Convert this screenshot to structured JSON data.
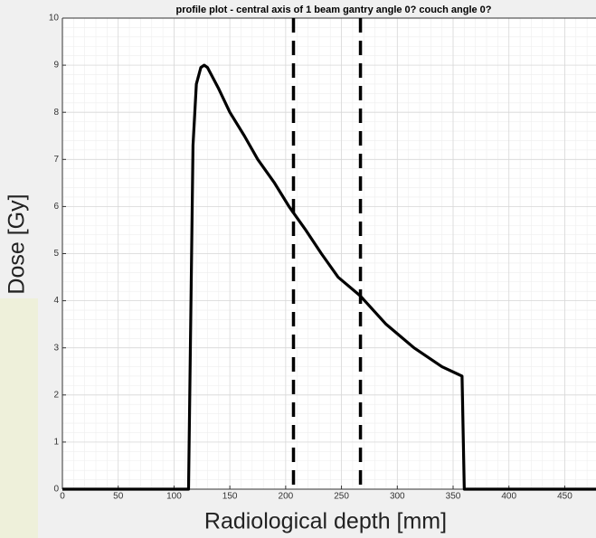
{
  "chart_data": {
    "type": "line",
    "title": "profile plot - central axis of 1 beam gantry angle 0? couch angle 0?",
    "x_label": "Radiological depth [mm]",
    "y_label": "Dose [Gy]",
    "series": [
      {
        "name": "dose",
        "color": "#000000",
        "x": [
          0,
          113,
          117,
          120,
          124,
          127,
          130,
          140,
          150,
          163,
          175,
          190,
          203,
          218,
          232,
          247,
          267,
          290,
          315,
          340,
          358,
          360,
          478
        ],
        "values": [
          0,
          0,
          7.3,
          8.6,
          8.95,
          9.0,
          8.95,
          8.5,
          8.0,
          7.5,
          7.0,
          6.5,
          6.0,
          5.5,
          5.0,
          4.5,
          4.1,
          3.5,
          3.0,
          2.6,
          2.4,
          0,
          0
        ]
      }
    ],
    "vlines": [
      207,
      267
    ],
    "xlim": [
      0,
      478
    ],
    "xticks": [
      0,
      50,
      100,
      150,
      200,
      250,
      300,
      350,
      400,
      450
    ],
    "ylim": [
      0,
      10
    ],
    "yticks": [
      0,
      1,
      2,
      3,
      4,
      5,
      6,
      7,
      8,
      9,
      10
    ],
    "grid": true,
    "minor_grid": true
  }
}
